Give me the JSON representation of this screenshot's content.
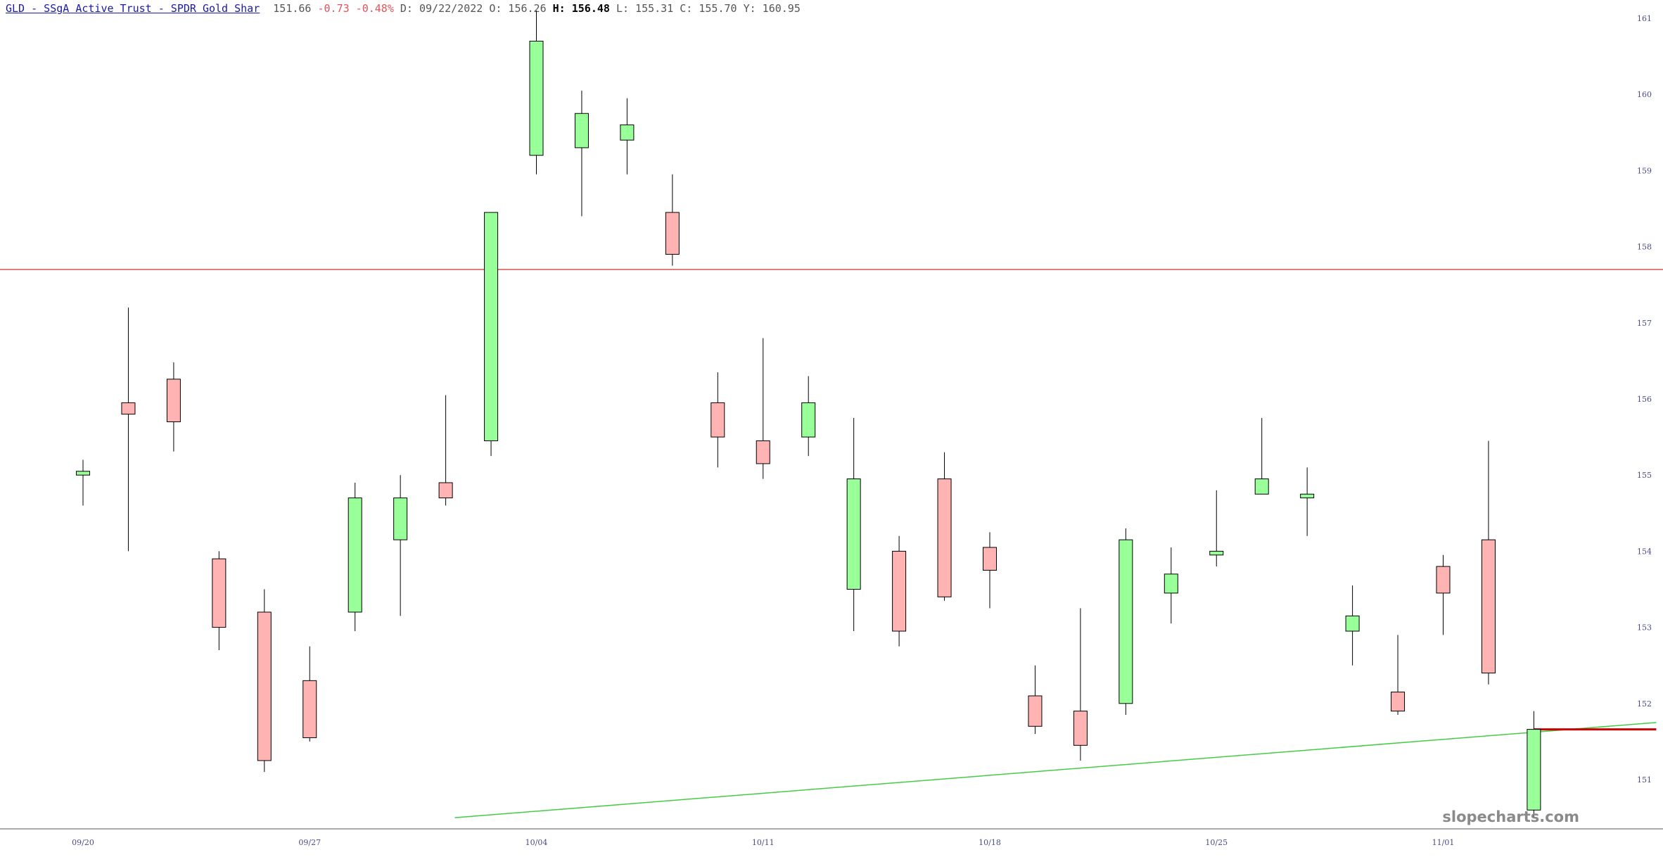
{
  "header": {
    "title": "GLD - SSgA Active Trust - SPDR Gold Shar",
    "last": "151.66",
    "change": "-0.73",
    "change_pct": "-0.48%",
    "date_label": "D:",
    "date": "09/22/2022",
    "open_label": "O:",
    "open": "156.26",
    "high_label": "H:",
    "high": "156.48",
    "low_label": "L:",
    "low": "155.31",
    "close_label": "C:",
    "close": "155.70",
    "y_label": "Y:",
    "y": "160.95"
  },
  "watermark": "slopecharts.com",
  "colors": {
    "up": "#99ff99",
    "down": "#ffb3b3",
    "outline": "#000000",
    "resistance": "#d9534f",
    "trend": "#44cc44",
    "level": "#cc0000"
  },
  "chart_data": {
    "type": "candlestick",
    "y_ticks": [
      "151",
      "152",
      "153",
      "154",
      "155",
      "156",
      "157",
      "158",
      "159",
      "160",
      "161"
    ],
    "ylim": [
      150.5,
      161.2
    ],
    "x_tick_labels": [
      {
        "label": "09/20",
        "index": 0
      },
      {
        "label": "09/27",
        "index": 5
      },
      {
        "label": "10/04",
        "index": 10
      },
      {
        "label": "10/11",
        "index": 15
      },
      {
        "label": "10/18",
        "index": 20
      },
      {
        "label": "10/25",
        "index": 25
      },
      {
        "label": "11/01",
        "index": 30
      }
    ],
    "candles": [
      {
        "date": "09/20",
        "open": 155.0,
        "high": 155.2,
        "low": 154.6,
        "close": 155.05
      },
      {
        "date": "09/21",
        "open": 155.95,
        "high": 157.2,
        "low": 154.0,
        "close": 155.8
      },
      {
        "date": "09/22",
        "open": 156.26,
        "high": 156.48,
        "low": 155.31,
        "close": 155.7
      },
      {
        "date": "09/23",
        "open": 153.9,
        "high": 154.0,
        "low": 152.7,
        "close": 153.0
      },
      {
        "date": "09/26",
        "open": 153.2,
        "high": 153.5,
        "low": 151.1,
        "close": 151.25
      },
      {
        "date": "09/27",
        "open": 152.3,
        "high": 152.75,
        "low": 151.5,
        "close": 151.55
      },
      {
        "date": "09/28",
        "open": 153.2,
        "high": 154.9,
        "low": 152.95,
        "close": 154.7
      },
      {
        "date": "09/29",
        "open": 154.15,
        "high": 155.0,
        "low": 153.15,
        "close": 154.7
      },
      {
        "date": "09/30",
        "open": 154.9,
        "high": 156.05,
        "low": 154.6,
        "close": 154.7
      },
      {
        "date": "10/03",
        "open": 155.45,
        "high": 158.45,
        "low": 155.25,
        "close": 158.45
      },
      {
        "date": "10/04",
        "open": 159.2,
        "high": 161.1,
        "low": 158.95,
        "close": 160.7
      },
      {
        "date": "10/05",
        "open": 159.3,
        "high": 160.05,
        "low": 158.4,
        "close": 159.75
      },
      {
        "date": "10/06",
        "open": 159.4,
        "high": 159.95,
        "low": 158.95,
        "close": 159.6
      },
      {
        "date": "10/07",
        "open": 158.45,
        "high": 158.95,
        "low": 157.75,
        "close": 157.9
      },
      {
        "date": "10/10",
        "open": 155.95,
        "high": 156.35,
        "low": 155.1,
        "close": 155.5
      },
      {
        "date": "10/11",
        "open": 155.45,
        "high": 156.8,
        "low": 154.95,
        "close": 155.15
      },
      {
        "date": "10/12",
        "open": 155.5,
        "high": 156.3,
        "low": 155.25,
        "close": 155.95
      },
      {
        "date": "10/13",
        "open": 153.5,
        "high": 155.75,
        "low": 152.95,
        "close": 154.95
      },
      {
        "date": "10/14",
        "open": 154.0,
        "high": 154.2,
        "low": 152.75,
        "close": 152.95
      },
      {
        "date": "10/17",
        "open": 154.95,
        "high": 155.3,
        "low": 153.35,
        "close": 153.4
      },
      {
        "date": "10/18",
        "open": 154.05,
        "high": 154.25,
        "low": 153.25,
        "close": 153.75
      },
      {
        "date": "10/19",
        "open": 152.1,
        "high": 152.5,
        "low": 151.6,
        "close": 151.7
      },
      {
        "date": "10/20",
        "open": 151.9,
        "high": 153.25,
        "low": 151.25,
        "close": 151.45
      },
      {
        "date": "10/21",
        "open": 152.0,
        "high": 154.3,
        "low": 151.85,
        "close": 154.15
      },
      {
        "date": "10/24",
        "open": 153.45,
        "high": 154.05,
        "low": 153.05,
        "close": 153.7
      },
      {
        "date": "10/25",
        "open": 153.95,
        "high": 154.8,
        "low": 153.8,
        "close": 154.0
      },
      {
        "date": "10/26",
        "open": 154.75,
        "high": 155.75,
        "low": 154.75,
        "close": 154.95
      },
      {
        "date": "10/27",
        "open": 154.7,
        "high": 155.1,
        "low": 154.2,
        "close": 154.75
      },
      {
        "date": "10/28",
        "open": 152.95,
        "high": 153.55,
        "low": 152.5,
        "close": 153.15
      },
      {
        "date": "10/31",
        "open": 152.15,
        "high": 152.9,
        "low": 151.85,
        "close": 151.9
      },
      {
        "date": "11/01",
        "open": 153.8,
        "high": 153.95,
        "low": 152.9,
        "close": 153.45
      },
      {
        "date": "11/02",
        "open": 154.15,
        "high": 155.45,
        "low": 152.25,
        "close": 152.4
      },
      {
        "date": "11/03",
        "open": 150.6,
        "high": 151.9,
        "low": 150.5,
        "close": 151.66
      }
    ],
    "resistance_line": 157.7,
    "trend_line": [
      {
        "index": 8.2,
        "value": 150.5
      },
      {
        "index": 34.7,
        "value": 151.75
      }
    ],
    "level_segment": {
      "from_index": 32,
      "to_index": 34.7,
      "value": 151.66
    }
  }
}
